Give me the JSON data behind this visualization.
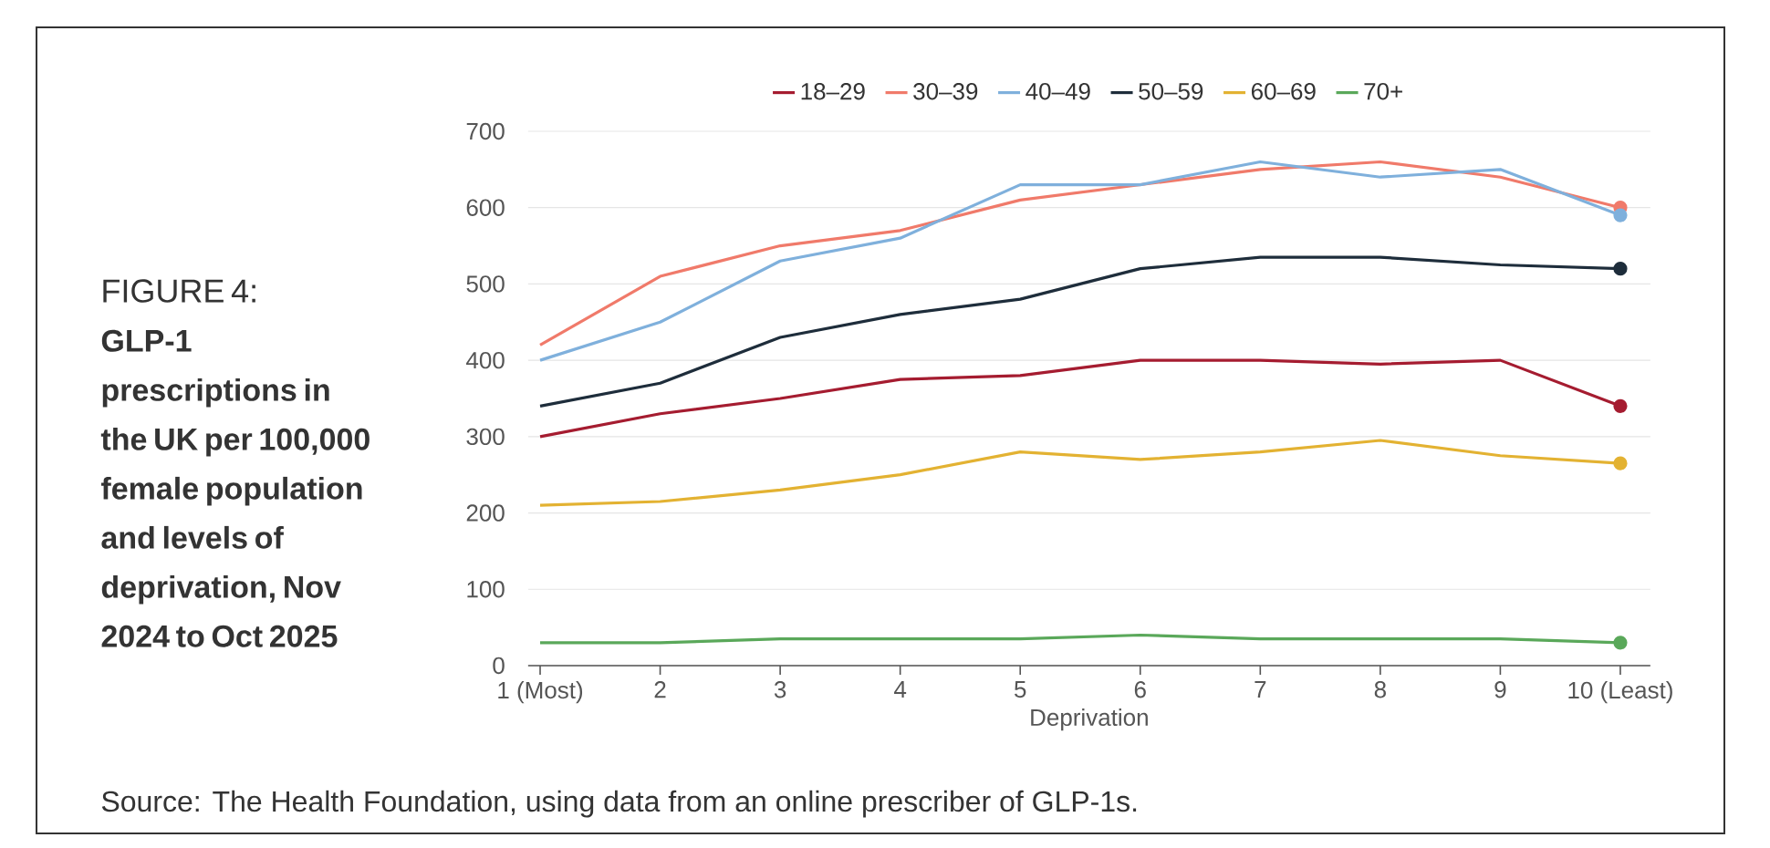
{
  "chart_data": {
    "type": "line",
    "title": "FIGURE 4:",
    "subtitle": "GLP-1 prescriptions in the UK per 100,000 female population and levels of deprivation, Nov 2024 to Oct 2025",
    "xlabel": "Deprivation",
    "categories": [
      "1 (Most)",
      "2",
      "3",
      "4",
      "5",
      "6",
      "7",
      "8",
      "9",
      "10 (Least)"
    ],
    "series": [
      {
        "name": "18–29",
        "color": "#a51c30",
        "values": [
          300,
          330,
          350,
          375,
          380,
          400,
          400,
          395,
          400,
          340
        ]
      },
      {
        "name": "30–39",
        "color": "#f07a6a",
        "values": [
          420,
          510,
          550,
          570,
          610,
          630,
          650,
          660,
          640,
          600
        ]
      },
      {
        "name": "40–49",
        "color": "#7fb0dc",
        "values": [
          400,
          450,
          530,
          560,
          630,
          630,
          660,
          640,
          650,
          590
        ]
      },
      {
        "name": "50–59",
        "color": "#1e2d3b",
        "values": [
          340,
          370,
          430,
          460,
          480,
          520,
          535,
          535,
          525,
          520
        ]
      },
      {
        "name": "60–69",
        "color": "#e3b232",
        "values": [
          210,
          215,
          230,
          250,
          280,
          270,
          280,
          295,
          275,
          265
        ]
      },
      {
        "name": "70+",
        "color": "#5aa85a",
        "values": [
          30,
          30,
          35,
          35,
          35,
          40,
          35,
          35,
          35,
          30
        ]
      }
    ],
    "ylim": [
      0,
      700
    ],
    "yticks": [
      0,
      100,
      200,
      300,
      400,
      500,
      600,
      700
    ],
    "grid": "y",
    "legend": "top",
    "annotations": [
      "Source: The Health Foundation, using data from an online prescriber of GLP-1s."
    ]
  }
}
